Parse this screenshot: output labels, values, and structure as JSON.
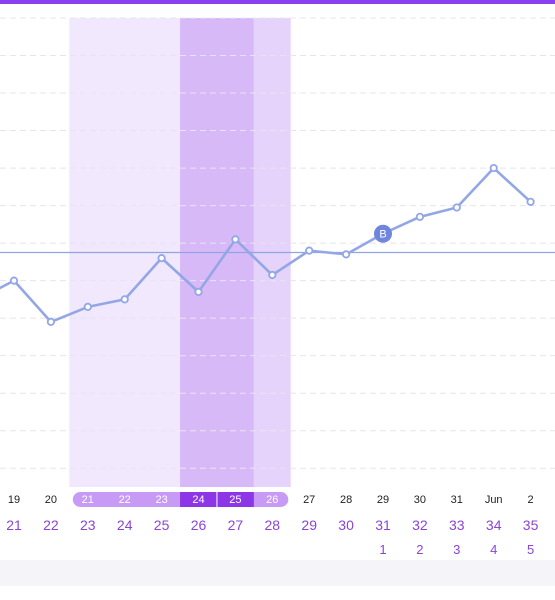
{
  "colors": {
    "accent": "#8a3ff0",
    "line": "#93a6e6",
    "threshold": "#8fa6e2",
    "fertile_light": "#f1e8fd",
    "fertile_mid": "#e5d3fb",
    "ovulation": "#d8b9f8",
    "ovulation_dark": "#cfa9f5",
    "cycle_text": "#8a45d8",
    "marker": "#6f86dc"
  },
  "marker_label": "B",
  "chart_data": {
    "type": "line",
    "x": [
      "19",
      "20",
      "21",
      "22",
      "23",
      "24",
      "25",
      "26",
      "27",
      "28",
      "29",
      "30",
      "31",
      "Jun",
      "2"
    ],
    "values": [
      -1,
      -3.2,
      -2.4,
      -2.0,
      0.2,
      -1.6,
      1.2,
      -0.7,
      0.6,
      0.4,
      1.5,
      2.4,
      2.9,
      5.0,
      3.2
    ],
    "ylim": [
      -12,
      13
    ],
    "threshold": 0.5,
    "cycle_days": [
      "21",
      "22",
      "23",
      "24",
      "25",
      "26",
      "27",
      "28",
      "29",
      "30",
      "31",
      "32",
      "33",
      "34",
      "35"
    ],
    "next_cycle_days": [
      "1",
      "2",
      "3",
      "4",
      "5"
    ],
    "fertile_days": [
      "23",
      "24",
      "25"
    ],
    "ovulation_days": [
      "26",
      "27"
    ],
    "late_fertile_days": [
      "28"
    ],
    "marker_index": 10
  }
}
